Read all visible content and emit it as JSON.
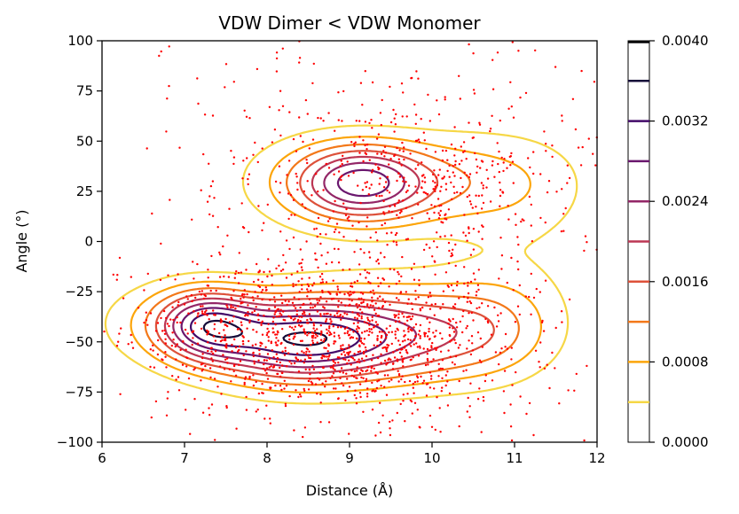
{
  "chart_data": {
    "type": "contour",
    "title": "VDW Dimer < VDW Monomer",
    "xlabel": "Distance (Å)",
    "ylabel": "Angle (°)",
    "xlim": [
      6,
      12
    ],
    "ylim": [
      -100,
      100
    ],
    "xticks": [
      "6",
      "7",
      "8",
      "9",
      "10",
      "11",
      "12"
    ],
    "yticks": [
      "100",
      "75",
      "50",
      "25",
      "0",
      "−25",
      "−50",
      "−75",
      "−100"
    ],
    "grid": false,
    "colorbar": {
      "range": [
        0,
        0.004
      ],
      "tick_labels": [
        "0.0040",
        "0.0032",
        "0.0024",
        "0.0016",
        "0.0008",
        "0.0000"
      ],
      "levels": [
        0.0004,
        0.0008,
        0.0012,
        0.0016,
        0.002,
        0.0024,
        0.0028,
        0.0032,
        0.0036
      ],
      "level_colors": [
        "#f6d746",
        "#fca50a",
        "#f37819",
        "#dd513a",
        "#bc3754",
        "#932667",
        "#6a176e",
        "#420a68",
        "#160b39"
      ]
    },
    "density_clusters": [
      {
        "x": 9.2,
        "y": 29,
        "peak": 0.00345
      },
      {
        "x": 8.4,
        "y": -48,
        "peak": 0.00375
      },
      {
        "x": 7.2,
        "y": -40,
        "peak": 0.0037
      }
    ],
    "scatter": {
      "marker_color": "#ff0000",
      "approx_points": 2000
    }
  }
}
